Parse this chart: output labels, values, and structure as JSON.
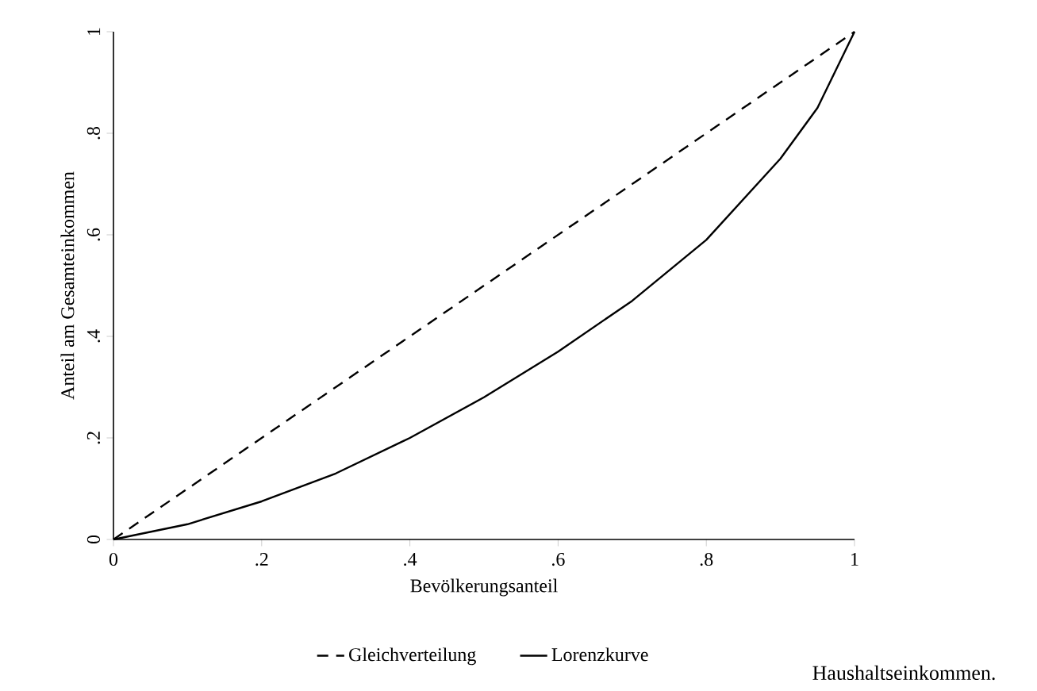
{
  "chart_data": {
    "type": "line",
    "xlabel": "Bevölkerungsanteil",
    "ylabel": "Anteil am Gesamteinkommen",
    "xlim": [
      0,
      1
    ],
    "ylim": [
      0,
      1
    ],
    "xticks": [
      0,
      {
        "value": 0.2,
        "label": ".2"
      },
      {
        "value": 0.4,
        "label": ".4"
      },
      {
        "value": 0.6,
        "label": ".6"
      },
      {
        "value": 0.8,
        "label": ".8"
      },
      1
    ],
    "yticks": [
      0,
      {
        "value": 0.2,
        "label": ".2"
      },
      {
        "value": 0.4,
        "label": ".4"
      },
      {
        "value": 0.6,
        "label": ".6"
      },
      {
        "value": 0.8,
        "label": ".8"
      },
      1
    ],
    "x": [
      0,
      0.1,
      0.2,
      0.3,
      0.4,
      0.5,
      0.6,
      0.7,
      0.8,
      0.9,
      0.95,
      1
    ],
    "series": [
      {
        "name": "Gleichverteilung",
        "color": "#000000",
        "line_style": "dashed",
        "x": [
          0,
          1
        ],
        "values": [
          0,
          1
        ]
      },
      {
        "name": "Lorenzkurve",
        "color": "#000000",
        "line_style": "solid",
        "values": [
          0,
          0.03,
          0.075,
          0.13,
          0.2,
          0.28,
          0.37,
          0.47,
          0.59,
          0.75,
          0.85,
          1
        ]
      }
    ],
    "marker": "none",
    "legend": "bottom",
    "annotations": [
      "Haushaltseinkommen."
    ]
  }
}
